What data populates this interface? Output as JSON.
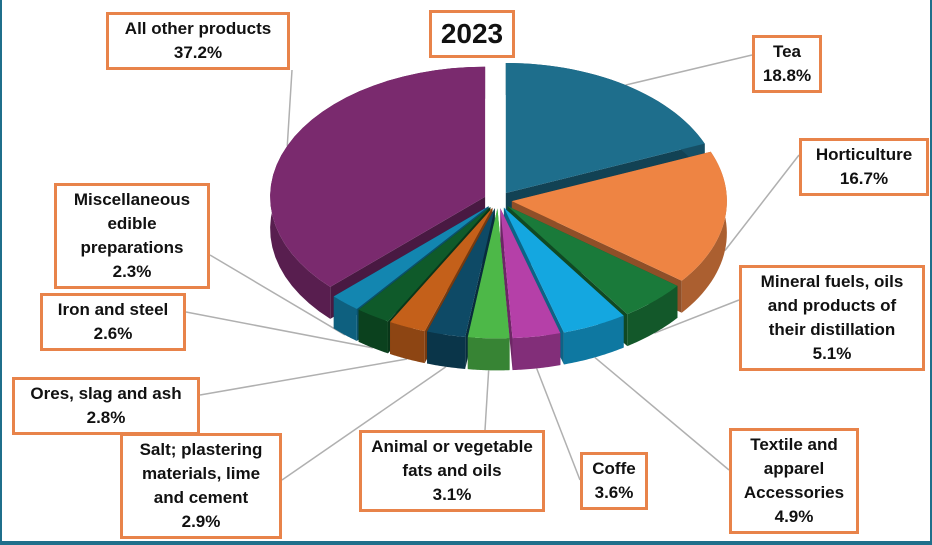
{
  "chart_data": {
    "type": "pie",
    "title": "2023",
    "slices": [
      {
        "label": "Tea",
        "value": 18.8,
        "display": "18.8%",
        "color": "#1e6e8c"
      },
      {
        "label": "Horticulture",
        "value": 16.7,
        "display": "16.7%",
        "color": "#ee8443"
      },
      {
        "label": "Mineral fuels, oils and products of their distillation",
        "value": 5.1,
        "display": "5.1%",
        "color": "#1a7a3a"
      },
      {
        "label": "Textile and apparel Accessories",
        "value": 4.9,
        "display": "4.9%",
        "color": "#14a7e0"
      },
      {
        "label": "Coffe",
        "value": 3.6,
        "display": "3.6%",
        "color": "#b540a8"
      },
      {
        "label": "Animal or vegetable fats and oils",
        "value": 3.1,
        "display": "3.1%",
        "color": "#4db848"
      },
      {
        "label": "Salt; plastering materials, lime and cement",
        "value": 2.9,
        "display": "2.9%",
        "color": "#0e4a66"
      },
      {
        "label": "Ores, slag and ash",
        "value": 2.8,
        "display": "2.8%",
        "color": "#c4601a"
      },
      {
        "label": "Iron and steel",
        "value": 2.6,
        "display": "2.6%",
        "color": "#0f5a2a"
      },
      {
        "label": "Miscellaneous edible preparations",
        "value": 2.3,
        "display": "2.3%",
        "color": "#1386b0"
      },
      {
        "label": "All other products",
        "value": 37.2,
        "display": "37.2%",
        "color": "#7a2a6e"
      }
    ]
  }
}
